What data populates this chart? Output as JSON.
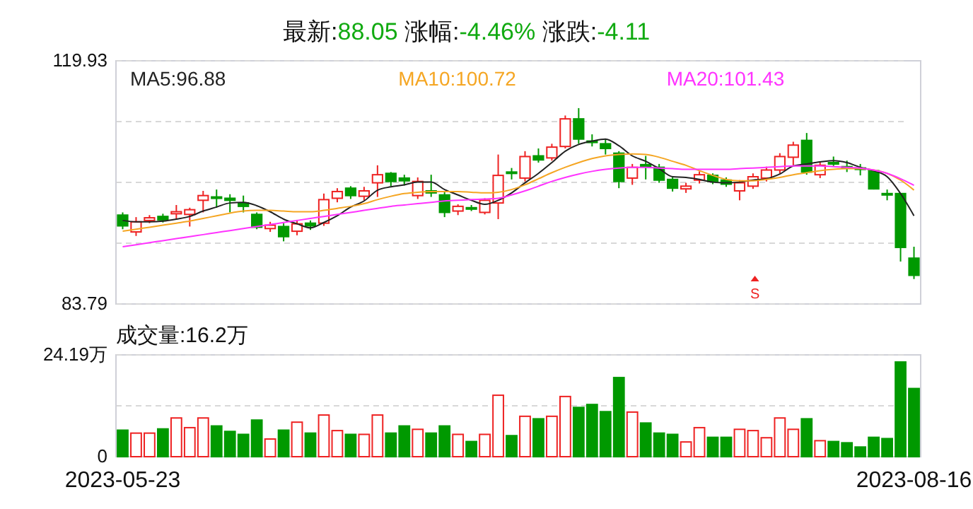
{
  "chart_data": [
    {
      "type": "candlestick",
      "title": "最新:88.05  涨幅:-4.46%  涨跌:-4.11",
      "categories": [
        "2023-05-23",
        null,
        null,
        null,
        null,
        null,
        null,
        null,
        null,
        null,
        null,
        null,
        null,
        null,
        null,
        null,
        null,
        null,
        null,
        null,
        null,
        null,
        null,
        null,
        null,
        null,
        null,
        null,
        null,
        null,
        null,
        null,
        null,
        null,
        null,
        null,
        null,
        null,
        null,
        null,
        null,
        null,
        null,
        null,
        null,
        null,
        null,
        null,
        null,
        null,
        null,
        null,
        null,
        null,
        null,
        null,
        null,
        null,
        null,
        "2023-08-16"
      ],
      "ohlc": [
        [
          97.0,
          97.4,
          94.9,
          95.4
        ],
        [
          94.5,
          96.7,
          93.9,
          96.0
        ],
        [
          96.2,
          97.0,
          95.8,
          96.6
        ],
        [
          96.8,
          97.2,
          95.9,
          96.3
        ],
        [
          97.2,
          98.5,
          96.4,
          97.5
        ],
        [
          97.1,
          98.1,
          95.3,
          97.8
        ],
        [
          99.2,
          100.6,
          97.4,
          99.9
        ],
        [
          99.7,
          100.8,
          98.1,
          99.5
        ],
        [
          99.5,
          100.1,
          97.4,
          99.2
        ],
        [
          98.8,
          99.9,
          97.4,
          98.3
        ],
        [
          97.1,
          97.4,
          94.9,
          95.2
        ],
        [
          95.0,
          96.0,
          94.5,
          95.5
        ],
        [
          95.3,
          95.8,
          93.1,
          93.8
        ],
        [
          94.6,
          96.3,
          94.0,
          95.7
        ],
        [
          95.8,
          96.2,
          94.8,
          95.4
        ],
        [
          95.8,
          100.2,
          95.4,
          99.3
        ],
        [
          99.5,
          101.0,
          98.9,
          100.5
        ],
        [
          101.0,
          101.3,
          99.4,
          99.9
        ],
        [
          99.8,
          101.2,
          99.2,
          100.6
        ],
        [
          101.8,
          104.4,
          99.7,
          103.0
        ],
        [
          103.2,
          103.4,
          101.3,
          102.0
        ],
        [
          102.5,
          103.0,
          101.4,
          102.1
        ],
        [
          99.9,
          102.6,
          99.4,
          102.0
        ],
        [
          100.6,
          103.0,
          99.7,
          100.3
        ],
        [
          100.0,
          100.4,
          96.7,
          97.4
        ],
        [
          97.6,
          98.6,
          97.0,
          98.3
        ],
        [
          98.1,
          98.5,
          97.6,
          98.0
        ],
        [
          97.4,
          99.5,
          97.1,
          99.2
        ],
        [
          98.8,
          106.0,
          96.4,
          102.9
        ],
        [
          103.4,
          104.0,
          102.3,
          103.2
        ],
        [
          102.5,
          106.5,
          102.0,
          105.7
        ],
        [
          105.8,
          106.9,
          104.8,
          105.2
        ],
        [
          105.5,
          107.6,
          105.1,
          107.1
        ],
        [
          107.2,
          111.8,
          106.9,
          111.3
        ],
        [
          111.3,
          112.9,
          107.6,
          108.3
        ],
        [
          108.0,
          109.0,
          107.2,
          107.9
        ],
        [
          107.6,
          108.3,
          106.0,
          106.9
        ],
        [
          106.2,
          106.5,
          101.0,
          102.0
        ],
        [
          102.5,
          104.6,
          101.5,
          104.1
        ],
        [
          104.5,
          105.8,
          102.3,
          104.2
        ],
        [
          104.1,
          104.6,
          101.8,
          102.2
        ],
        [
          102.3,
          102.6,
          100.5,
          101.0
        ],
        [
          100.9,
          101.8,
          100.3,
          101.3
        ],
        [
          102.2,
          103.5,
          101.7,
          103.0
        ],
        [
          102.9,
          103.2,
          101.6,
          102.0
        ],
        [
          102.2,
          102.6,
          101.2,
          101.6
        ],
        [
          100.6,
          102.2,
          99.2,
          101.8
        ],
        [
          101.3,
          103.2,
          100.9,
          102.7
        ],
        [
          102.5,
          104.2,
          102.0,
          103.7
        ],
        [
          103.7,
          106.2,
          103.2,
          105.7
        ],
        [
          105.6,
          107.9,
          104.4,
          107.4
        ],
        [
          108.1,
          109.2,
          103.0,
          103.4
        ],
        [
          103.0,
          104.8,
          102.5,
          104.4
        ],
        [
          104.8,
          105.7,
          104.3,
          104.7
        ],
        [
          104.2,
          105.1,
          103.4,
          104.0
        ],
        [
          104.0,
          104.6,
          102.9,
          103.8
        ],
        [
          103.6,
          103.7,
          100.8,
          100.9
        ],
        [
          100.2,
          100.8,
          99.2,
          100.1
        ],
        [
          100.2,
          100.2,
          90.1,
          92.2
        ],
        [
          90.6,
          92.3,
          87.5,
          88.05
        ]
      ],
      "series": [
        {
          "name": "MA5:96.88",
          "type": "line",
          "color": "#222222",
          "values": [
            96.2,
            96.0,
            96.0,
            96.1,
            96.4,
            96.8,
            97.6,
            98.2,
            98.8,
            98.9,
            98.4,
            97.5,
            96.4,
            95.7,
            95.1,
            95.9,
            96.9,
            98.2,
            99.1,
            100.7,
            101.2,
            101.5,
            101.9,
            101.9,
            100.8,
            100.0,
            99.2,
            98.6,
            99.2,
            100.3,
            101.8,
            103.2,
            104.8,
            106.5,
            107.5,
            108.0,
            108.3,
            107.3,
            105.8,
            105.0,
            103.9,
            102.7,
            102.6,
            102.3,
            101.9,
            101.8,
            101.9,
            102.2,
            102.4,
            103.1,
            104.3,
            104.6,
            104.9,
            105.1,
            104.8,
            104.1,
            103.6,
            102.7,
            100.2,
            96.9
          ]
        },
        {
          "name": "MA10:100.72",
          "type": "line",
          "color": "#f5a623",
          "values": [
            94.6,
            94.9,
            95.2,
            95.5,
            95.8,
            96.1,
            96.5,
            96.9,
            97.3,
            97.6,
            97.7,
            97.7,
            97.6,
            97.5,
            97.5,
            97.7,
            98.0,
            98.3,
            98.7,
            99.3,
            99.8,
            100.2,
            100.4,
            100.5,
            100.5,
            100.5,
            100.4,
            100.3,
            100.4,
            100.8,
            101.5,
            102.4,
            103.3,
            104.1,
            104.8,
            105.4,
            105.8,
            106.0,
            106.1,
            106.0,
            105.6,
            105.0,
            104.4,
            103.6,
            102.9,
            102.3,
            102.1,
            102.1,
            102.3,
            102.6,
            103.0,
            103.3,
            103.6,
            103.8,
            103.9,
            103.9,
            103.7,
            103.2,
            102.2,
            100.72
          ]
        },
        {
          "name": "MA20:101.43",
          "type": "line",
          "color": "#ff33ff",
          "values": [
            92.3,
            92.6,
            92.9,
            93.2,
            93.5,
            93.8,
            94.1,
            94.4,
            94.7,
            95.0,
            95.3,
            95.6,
            95.9,
            96.2,
            96.5,
            96.8,
            97.1,
            97.4,
            97.7,
            98.0,
            98.3,
            98.5,
            98.7,
            98.9,
            99.1,
            99.2,
            99.3,
            99.4,
            99.5,
            100.0,
            100.6,
            101.3,
            102.0,
            102.6,
            103.1,
            103.5,
            103.8,
            104.0,
            104.1,
            104.1,
            104.0,
            103.9,
            103.8,
            103.8,
            103.8,
            103.8,
            103.9,
            104.0,
            104.1,
            104.2,
            104.3,
            104.3,
            104.3,
            104.2,
            104.1,
            104.0,
            103.7,
            103.2,
            102.4,
            101.43
          ]
        }
      ],
      "annotations": [
        "S"
      ],
      "ylim": [
        83.79,
        119.93
      ],
      "yticks": [
        119.93,
        {
          "value": 110.895,
          "label": null
        },
        {
          "value": 101.86,
          "label": null
        },
        {
          "value": 92.825,
          "label": null
        },
        83.79
      ],
      "grid": "y",
      "legend": "top",
      "tick_labels": "y"
    },
    {
      "type": "bar",
      "title": "成交量:16.2万",
      "categories": [
        "2023-05-23",
        null,
        null,
        null,
        null,
        null,
        null,
        null,
        null,
        null,
        null,
        null,
        null,
        null,
        null,
        null,
        null,
        null,
        null,
        null,
        null,
        null,
        null,
        null,
        null,
        null,
        null,
        null,
        null,
        null,
        null,
        null,
        null,
        null,
        null,
        null,
        null,
        null,
        null,
        null,
        null,
        null,
        null,
        null,
        null,
        null,
        null,
        null,
        null,
        null,
        null,
        null,
        null,
        null,
        null,
        null,
        null,
        null,
        null,
        "2023-08-16"
      ],
      "values": [
        6.3,
        5.6,
        5.6,
        6.6,
        9.2,
        6.9,
        9.2,
        7.3,
        6.0,
        5.3,
        8.7,
        4.2,
        6.3,
        8.2,
        5.6,
        9.9,
        6.2,
        5.3,
        5.3,
        9.9,
        5.6,
        7.3,
        6.5,
        5.6,
        7.3,
        5.3,
        3.6,
        5.3,
        14.6,
        5.0,
        9.6,
        9.0,
        9.6,
        14.3,
        11.7,
        12.4,
        10.7,
        18.8,
        10.6,
        8.0,
        5.6,
        5.3,
        3.5,
        6.9,
        4.6,
        4.6,
        6.5,
        6.2,
        4.5,
        9.2,
        6.5,
        9.0,
        3.8,
        3.6,
        3.3,
        2.3,
        4.6,
        4.3,
        22.5,
        16.2
      ],
      "colors": [
        "#009900",
        "#ee2222",
        "#ee2222",
        "#009900",
        "#ee2222",
        "#ee2222",
        "#ee2222",
        "#009900",
        "#009900",
        "#009900",
        "#009900",
        "#ee2222",
        "#009900",
        "#ee2222",
        "#009900",
        "#ee2222",
        "#ee2222",
        "#009900",
        "#ee2222",
        "#ee2222",
        "#009900",
        "#009900",
        "#ee2222",
        "#009900",
        "#009900",
        "#ee2222",
        "#009900",
        "#ee2222",
        "#ee2222",
        "#009900",
        "#ee2222",
        "#009900",
        "#ee2222",
        "#ee2222",
        "#009900",
        "#009900",
        "#009900",
        "#009900",
        "#ee2222",
        "#009900",
        "#009900",
        "#009900",
        "#ee2222",
        "#ee2222",
        "#009900",
        "#009900",
        "#ee2222",
        "#ee2222",
        "#ee2222",
        "#ee2222",
        "#ee2222",
        "#009900",
        "#ee2222",
        "#009900",
        "#009900",
        "#009900",
        "#009900",
        "#009900",
        "#009900",
        "#009900"
      ],
      "ylim": [
        0,
        24.19
      ],
      "yticks": [
        {
          "value": 24.19,
          "label": "24.19万"
        },
        {
          "value": 12.095,
          "label": null
        },
        0
      ],
      "grid": "y"
    }
  ]
}
